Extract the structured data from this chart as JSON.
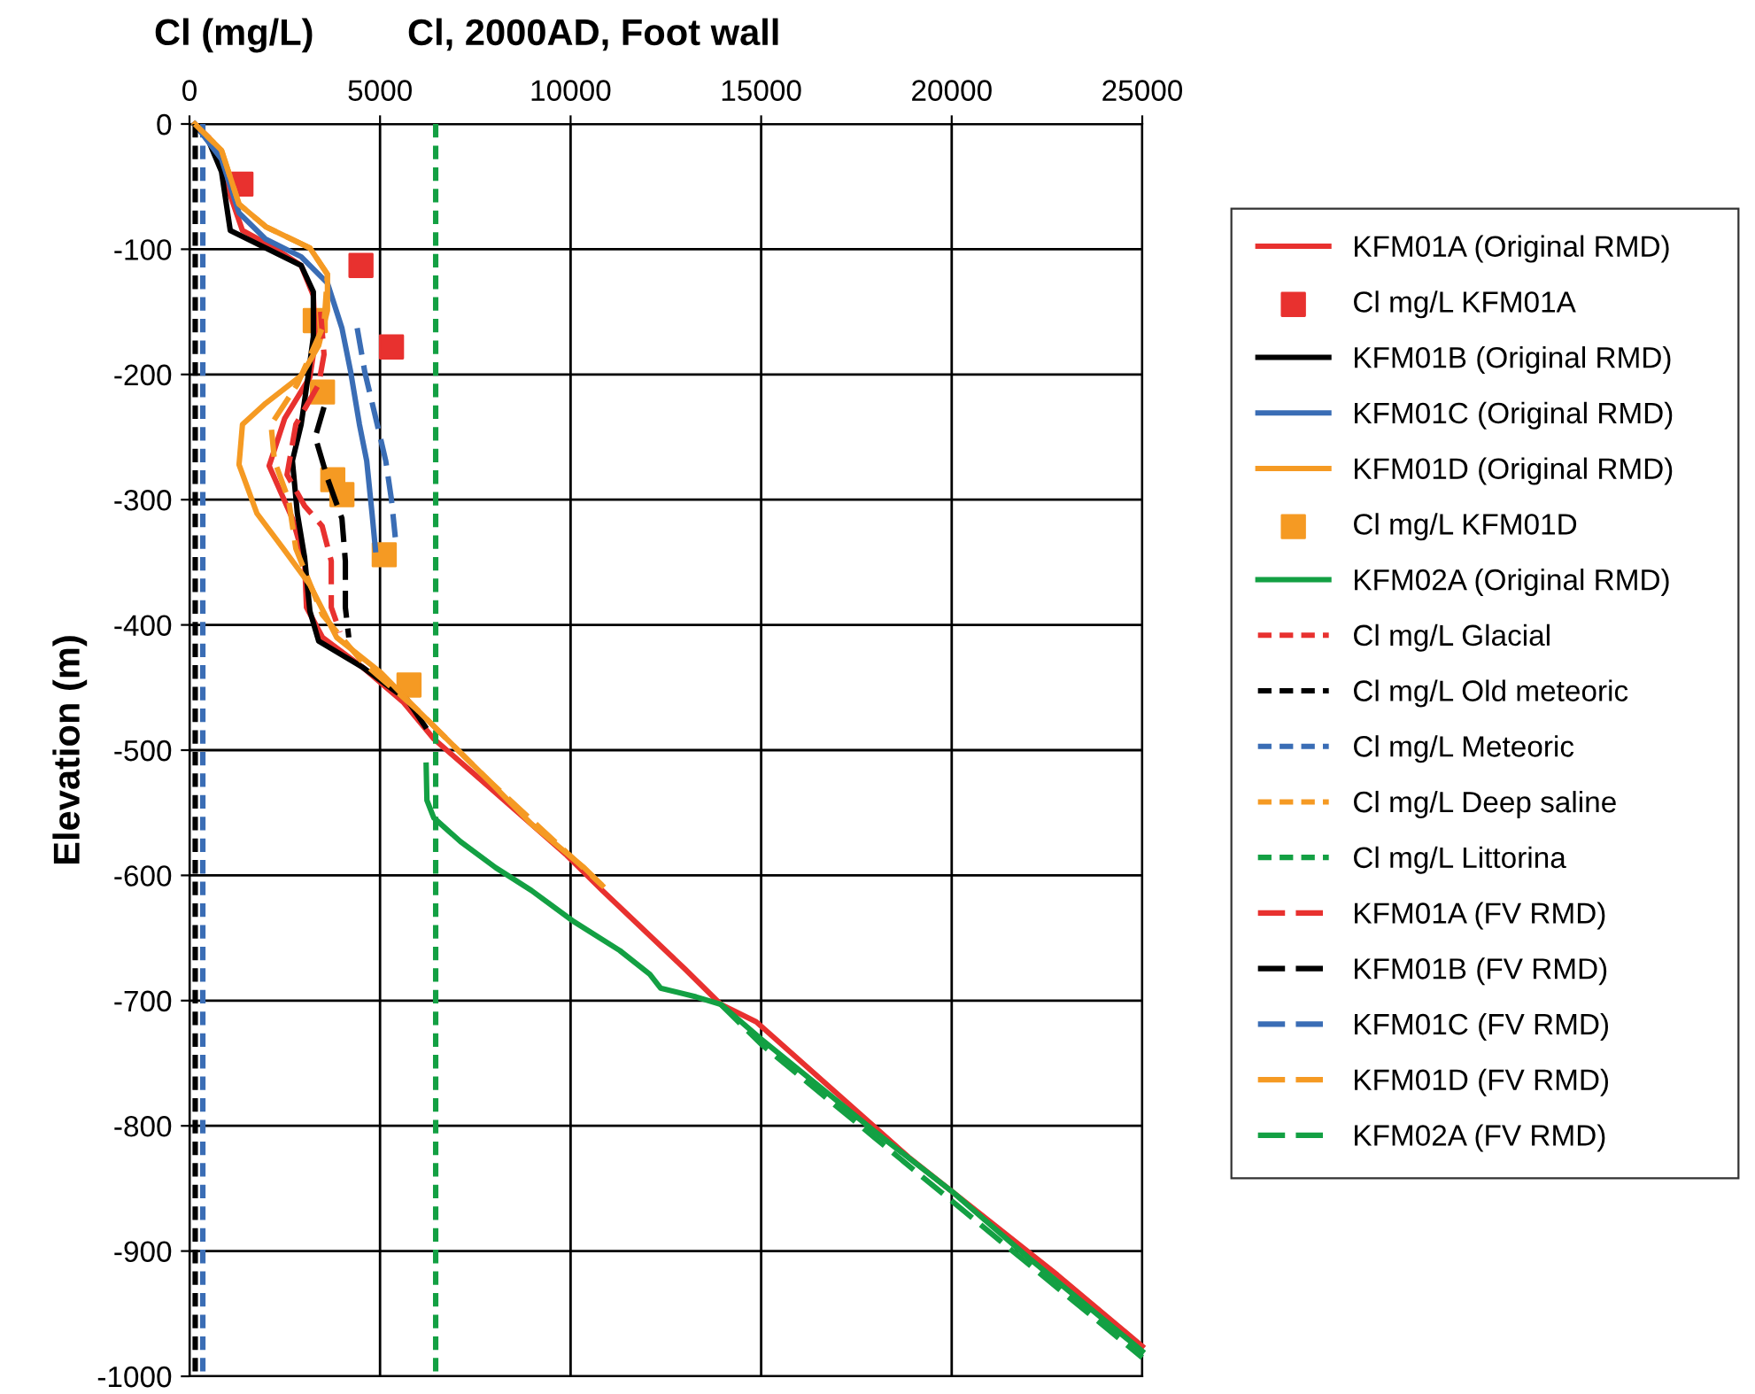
{
  "chart_data": {
    "type": "line",
    "title": "Cl, 2000AD, Foot wall",
    "xlabel": "Cl (mg/L)",
    "ylabel": "Elevation (m)",
    "xlim": [
      0,
      25000
    ],
    "xticks": [
      0,
      5000,
      10000,
      15000,
      20000,
      25000
    ],
    "ylim": [
      -1000,
      0
    ],
    "yticks": [
      -1000,
      -900,
      -800,
      -700,
      -600,
      -500,
      -400,
      -300,
      -200,
      -100,
      0
    ],
    "grid": true,
    "legend": "right",
    "marker": "none",
    "line_style": "solid",
    "series": [
      {
        "name": "KFM01A (Original RMD)",
        "color": "#e8312f",
        "x": [
          140,
          510,
          930,
          1070,
          1390,
          2230,
          2930,
          3250,
          3300,
          3160,
          2500,
          2090,
          2700,
          3020,
          3070,
          3490,
          4550,
          5620,
          6410,
          7810,
          9900,
          10830,
          13010,
          13940,
          14870,
          18870,
          22770,
          25000
        ],
        "values": [
          0,
          -11,
          -33,
          -57,
          -85,
          -99,
          -113,
          -137,
          -174,
          -202,
          -235,
          -273,
          -315,
          -349,
          -386,
          -410,
          -434,
          -462,
          -491,
          -528,
          -584,
          -612,
          -675,
          -703,
          -717,
          -825,
          -919,
          -976
        ]
      },
      {
        "name": "Cl mg/L KFM01A",
        "type": "scatter",
        "marker": "square",
        "color": "#e8312f",
        "x": [
          1350,
          4500,
          5300
        ],
        "values": [
          -48,
          -113,
          -178
        ]
      },
      {
        "name": "KFM01B (Original RMD)",
        "color": "#000000",
        "x": [
          140,
          510,
          840,
          1070,
          2000,
          2930,
          3250,
          3250,
          3110,
          2930,
          2700,
          2830,
          3020,
          3160,
          3390,
          4550,
          5720,
          6180
        ],
        "values": [
          0,
          -14,
          -38,
          -85,
          -99,
          -113,
          -134,
          -170,
          -202,
          -240,
          -269,
          -311,
          -346,
          -389,
          -413,
          -434,
          -460,
          -481
        ]
      },
      {
        "name": "KFM01C (Original RMD)",
        "color": "#3a6db5",
        "x": [
          140,
          840,
          1300,
          2000,
          2930,
          3620,
          4000,
          4230,
          4460,
          4650,
          4790,
          4880
        ],
        "values": [
          0,
          -28,
          -71,
          -92,
          -106,
          -127,
          -163,
          -198,
          -240,
          -269,
          -311,
          -340
        ]
      },
      {
        "name": "KFM01D (Original RMD)",
        "color": "#f59a23",
        "x": [
          140,
          840,
          1300,
          2000,
          3160,
          3620,
          3620,
          3390,
          2930,
          2000,
          1390,
          1300,
          1770,
          2460,
          3160,
          3860,
          5020,
          5950,
          6880,
          7810,
          8970,
          10360,
          10830
        ],
        "values": [
          0,
          -21,
          -64,
          -82,
          -99,
          -120,
          -149,
          -177,
          -201,
          -223,
          -240,
          -272,
          -311,
          -339,
          -368,
          -410,
          -438,
          -467,
          -495,
          -523,
          -559,
          -594,
          -608
        ]
      },
      {
        "name": "Cl mg/L KFM01D",
        "type": "scatter",
        "marker": "square",
        "color": "#f59a23",
        "x": [
          3300,
          3490,
          3760,
          4000,
          5110,
          5760
        ],
        "values": [
          -157,
          -214,
          -284,
          -296,
          -344,
          -448
        ]
      },
      {
        "name": "KFM02A (Original RMD)",
        "color": "#13a043",
        "x": [
          6210,
          6230,
          6410,
          7110,
          8040,
          8970,
          10040,
          11290,
          12080,
          12360,
          13290,
          13940,
          15010,
          18000,
          20030,
          22000,
          25000
        ],
        "values": [
          -512,
          -540,
          -554,
          -573,
          -594,
          -612,
          -636,
          -660,
          -679,
          -690,
          -697,
          -703,
          -731,
          -805,
          -853,
          -905,
          -980
        ]
      },
      {
        "name": "Cl mg/L Glacial",
        "color": "#e8312f",
        "line_style": "dotted",
        "x": [
          null,
          null
        ],
        "values": [
          null,
          null
        ]
      },
      {
        "name": "Cl mg/L Old meteoric",
        "color": "#000000",
        "line_style": "dotted",
        "x": [
          150,
          150
        ],
        "values": [
          0,
          -1000
        ]
      },
      {
        "name": "Cl mg/L Meteoric",
        "color": "#3a6db5",
        "line_style": "dotted",
        "x": [
          350,
          350
        ],
        "values": [
          0,
          -1000
        ]
      },
      {
        "name": "Cl mg/L Deep saline",
        "color": "#f59a23",
        "line_style": "dotted",
        "x": [
          null,
          null
        ],
        "values": [
          null,
          null
        ]
      },
      {
        "name": "Cl mg/L Littorina",
        "color": "#13a043",
        "line_style": "dotted",
        "x": [
          6460,
          6460
        ],
        "values": [
          0,
          -1000
        ]
      },
      {
        "name": "KFM01A (FV RMD)",
        "color": "#e8312f",
        "line_style": "dashed",
        "x": [
          3440,
          3530,
          3390,
          2790,
          2560,
          3020,
          3480,
          3720,
          3720,
          3950
        ],
        "values": [
          -150,
          -184,
          -208,
          -240,
          -280,
          -305,
          -321,
          -349,
          -386,
          -406
        ]
      },
      {
        "name": "KFM01B (FV RMD)",
        "color": "#000000",
        "line_style": "dashed",
        "x": [
          3530,
          3300,
          3620,
          4000,
          4090,
          4090,
          4180
        ],
        "values": [
          -226,
          -250,
          -283,
          -315,
          -349,
          -386,
          -410
        ]
      },
      {
        "name": "KFM01C (FV RMD)",
        "color": "#3a6db5",
        "line_style": "dashed",
        "x": [
          4400,
          4600,
          4850,
          5150,
          5300,
          5400
        ],
        "values": [
          -163,
          -198,
          -230,
          -269,
          -300,
          -330
        ]
      },
      {
        "name": "KFM01D (FV RMD)",
        "color": "#f59a23",
        "line_style": "dashed",
        "x": [
          140,
          840,
          1300,
          2000,
          3160,
          3620,
          3530,
          2830,
          2140,
          2230,
          2600,
          2790,
          3490,
          4550,
          5950,
          7810,
          10830
        ],
        "values": [
          0,
          -21,
          -64,
          -82,
          -99,
          -120,
          -160,
          -208,
          -240,
          -269,
          -300,
          -339,
          -392,
          -430,
          -467,
          -523,
          -608
        ]
      },
      {
        "name": "KFM02A (FV RMD)",
        "color": "#13a043",
        "line_style": "dashed",
        "x": [
          13940,
          15010,
          18000,
          22000,
          25000
        ],
        "values": [
          -703,
          -735,
          -810,
          -910,
          -985
        ]
      }
    ]
  }
}
